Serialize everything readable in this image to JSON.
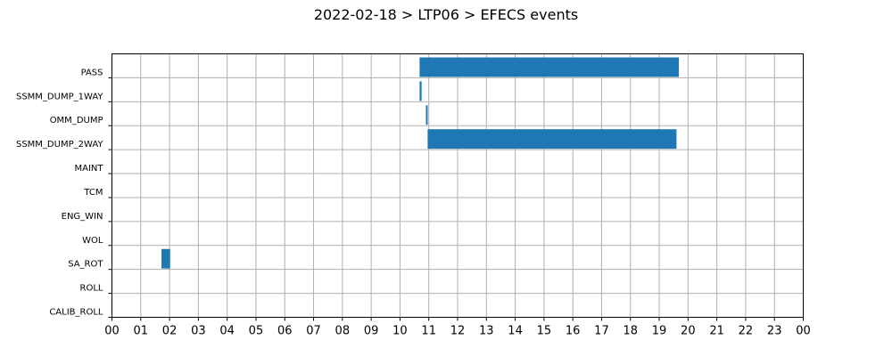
{
  "chart_data": {
    "type": "bar",
    "orientation": "horizontal",
    "title": "2022-02-18 > LTP06 > EFECS events",
    "xlabel": "",
    "ylabel": "",
    "xlim": [
      0,
      24
    ],
    "categories": [
      "PASS",
      "SSMM_DUMP_1WAY",
      "OMM_DUMP",
      "SSMM_DUMP_2WAY",
      "MAINT",
      "TCM",
      "ENG_WIN",
      "WOL",
      "SA_ROT",
      "ROLL",
      "CALIB_ROLL"
    ],
    "x_tick_labels": [
      "00",
      "01",
      "02",
      "03",
      "04",
      "05",
      "06",
      "07",
      "08",
      "09",
      "10",
      "11",
      "12",
      "13",
      "14",
      "15",
      "16",
      "17",
      "18",
      "19",
      "20",
      "21",
      "22",
      "23",
      "00"
    ],
    "grid": true,
    "bar_color": "#1f77b4",
    "events": [
      {
        "category": "PASS",
        "start": 10.68,
        "end": 19.68
      },
      {
        "category": "SSMM_DUMP_1WAY",
        "start": 10.68,
        "end": 10.75
      },
      {
        "category": "OMM_DUMP",
        "start": 10.9,
        "end": 10.96
      },
      {
        "category": "SSMM_DUMP_2WAY",
        "start": 10.96,
        "end": 19.6
      },
      {
        "category": "SA_ROT",
        "start": 1.72,
        "end": 2.02
      }
    ]
  }
}
